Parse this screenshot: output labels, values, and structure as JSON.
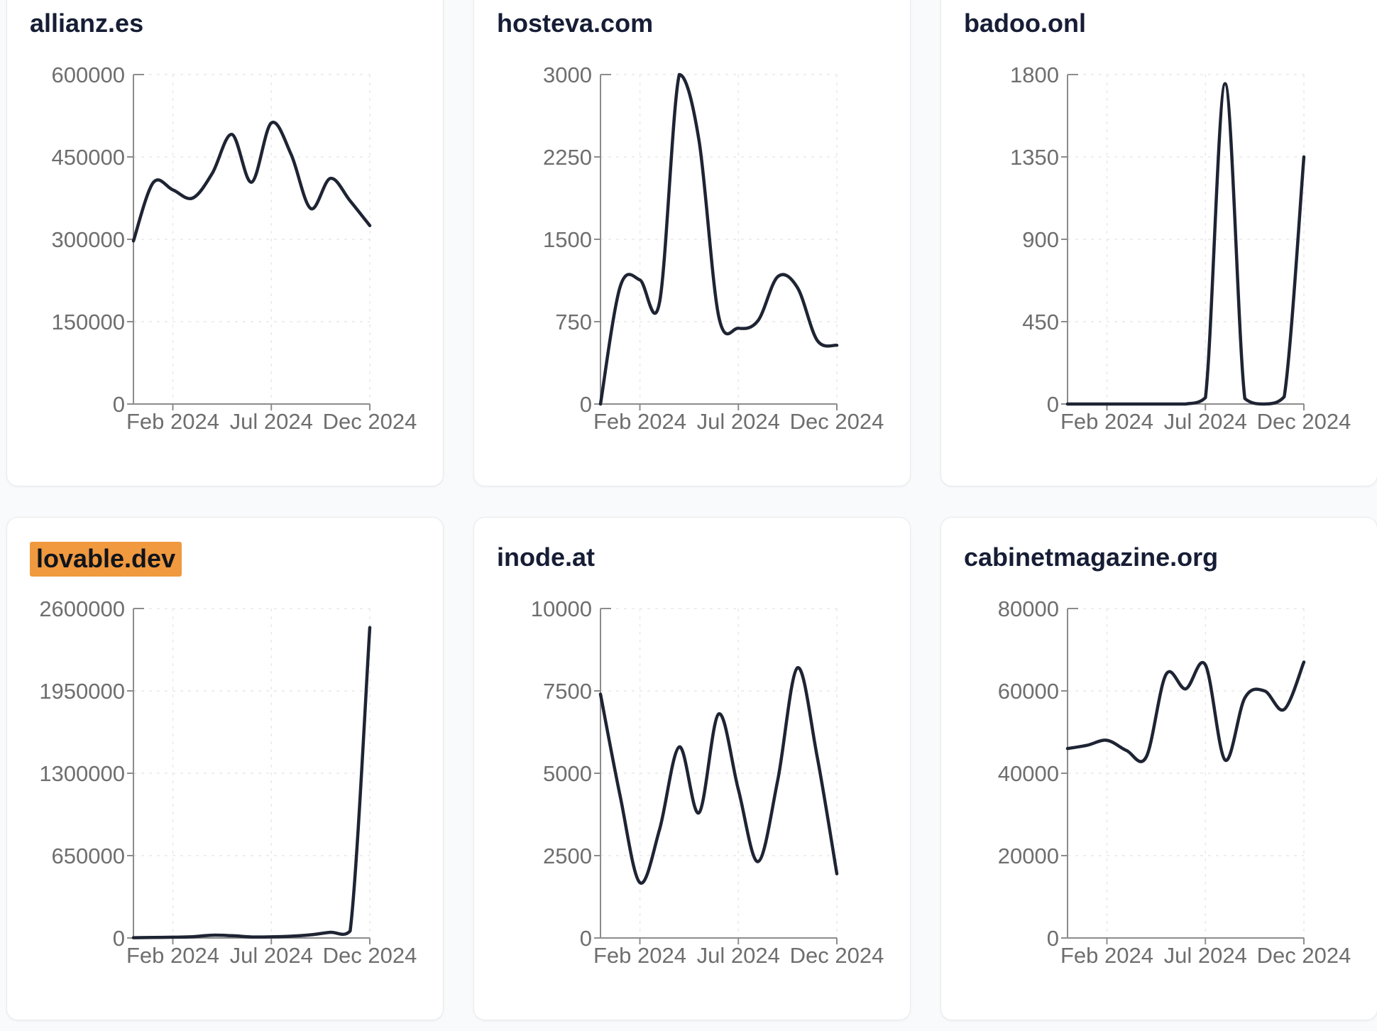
{
  "style": {
    "page_bg": "#f9fafb",
    "card_bg": "#ffffff",
    "card_border": "#e8eaee",
    "title_color": "#161d35",
    "highlight_bg": "#F0993F",
    "line_color": "#1e2433",
    "axis_color": "#8c8c8c",
    "grid_color": "#e9e9e9",
    "tick_label_color": "#6e6e6e"
  },
  "chart_data": [
    {
      "type": "line",
      "title": "allianz.es",
      "highlighted": false,
      "x": [
        "Dec 2023",
        "Jan 2024",
        "Feb 2024",
        "Mar 2024",
        "Apr 2024",
        "May 2024",
        "Jun 2024",
        "Jul 2024",
        "Aug 2024",
        "Sep 2024",
        "Oct 2024",
        "Nov 2024",
        "Dec 2024"
      ],
      "values": [
        297000,
        403000,
        390000,
        375000,
        420000,
        491000,
        404000,
        512000,
        455000,
        356000,
        411000,
        370000,
        325000
      ],
      "ylim": [
        0,
        600000
      ],
      "y_ticks": [
        0,
        150000,
        300000,
        450000,
        600000
      ],
      "x_ticks": [
        {
          "label": "Feb 2024",
          "t": 0.1667
        },
        {
          "label": "Jul 2024",
          "t": 0.5833
        },
        {
          "label": "Dec 2024",
          "t": 1.0
        }
      ],
      "grid": true,
      "legend": "none"
    },
    {
      "type": "line",
      "title": "hosteva.com",
      "highlighted": false,
      "x": [
        "Dec 2023",
        "Jan 2024",
        "Feb 2024",
        "Mar 2024",
        "Apr 2024",
        "May 2024",
        "Jun 2024",
        "Jul 2024",
        "Aug 2024",
        "Sep 2024",
        "Oct 2024",
        "Nov 2024",
        "Dec 2024"
      ],
      "values": [
        0,
        1070,
        1130,
        930,
        3000,
        2400,
        800,
        690,
        760,
        1160,
        1060,
        580,
        535
      ],
      "ylim": [
        0,
        3000
      ],
      "y_ticks": [
        0,
        750,
        1500,
        2250,
        3000
      ],
      "x_ticks": [
        {
          "label": "Feb 2024",
          "t": 0.1667
        },
        {
          "label": "Jul 2024",
          "t": 0.5833
        },
        {
          "label": "Dec 2024",
          "t": 1.0
        }
      ],
      "grid": true,
      "legend": "none"
    },
    {
      "type": "line",
      "title": "badoo.onl",
      "highlighted": false,
      "x": [
        "Dec 2023",
        "Jan 2024",
        "Feb 2024",
        "Mar 2024",
        "Apr 2024",
        "May 2024",
        "Jun 2024",
        "Jul 2024",
        "Aug 2024",
        "Sep 2024",
        "Oct 2024",
        "Nov 2024",
        "Dec 2024"
      ],
      "values": [
        0,
        0,
        0,
        0,
        0,
        0,
        0,
        35,
        1750,
        30,
        0,
        40,
        1350
      ],
      "ylim": [
        0,
        1800
      ],
      "y_ticks": [
        0,
        450,
        900,
        1350,
        1800
      ],
      "x_ticks": [
        {
          "label": "Feb 2024",
          "t": 0.1667
        },
        {
          "label": "Jul 2024",
          "t": 0.5833
        },
        {
          "label": "Dec 2024",
          "t": 1.0
        }
      ],
      "grid": true,
      "legend": "none"
    },
    {
      "type": "line",
      "title": "lovable.dev",
      "highlighted": true,
      "x": [
        "Dec 2023",
        "Jan 2024",
        "Feb 2024",
        "Mar 2024",
        "Apr 2024",
        "May 2024",
        "Jun 2024",
        "Jul 2024",
        "Aug 2024",
        "Sep 2024",
        "Oct 2024",
        "Nov 2024",
        "Dec 2024"
      ],
      "values": [
        2000,
        4000,
        6000,
        10000,
        22000,
        18000,
        8000,
        9000,
        14000,
        25000,
        45000,
        55000,
        2450000
      ],
      "ylim": [
        0,
        2600000
      ],
      "y_ticks": [
        0,
        650000,
        1300000,
        1950000,
        2600000
      ],
      "x_ticks": [
        {
          "label": "Feb 2024",
          "t": 0.1667
        },
        {
          "label": "Jul 2024",
          "t": 0.5833
        },
        {
          "label": "Dec 2024",
          "t": 1.0
        }
      ],
      "grid": true,
      "legend": "none"
    },
    {
      "type": "line",
      "title": "inode.at",
      "highlighted": false,
      "x": [
        "Dec 2023",
        "Jan 2024",
        "Feb 2024",
        "Mar 2024",
        "Apr 2024",
        "May 2024",
        "Jun 2024",
        "Jul 2024",
        "Aug 2024",
        "Sep 2024",
        "Oct 2024",
        "Nov 2024",
        "Dec 2024"
      ],
      "values": [
        7400,
        4300,
        1680,
        3300,
        5800,
        3800,
        6800,
        4500,
        2320,
        4800,
        8200,
        5500,
        1950
      ],
      "ylim": [
        0,
        10000
      ],
      "y_ticks": [
        0,
        2500,
        5000,
        7500,
        10000
      ],
      "x_ticks": [
        {
          "label": "Feb 2024",
          "t": 0.1667
        },
        {
          "label": "Jul 2024",
          "t": 0.5833
        },
        {
          "label": "Dec 2024",
          "t": 1.0
        }
      ],
      "grid": true,
      "legend": "none"
    },
    {
      "type": "line",
      "title": "cabinetmagazine.org",
      "highlighted": false,
      "x": [
        "Dec 2023",
        "Jan 2024",
        "Feb 2024",
        "Mar 2024",
        "Apr 2024",
        "May 2024",
        "Jun 2024",
        "Jul 2024",
        "Aug 2024",
        "Sep 2024",
        "Oct 2024",
        "Nov 2024",
        "Dec 2024"
      ],
      "values": [
        46000,
        46800,
        48000,
        45500,
        44000,
        64000,
        60500,
        66300,
        43200,
        58300,
        60000,
        55500,
        67000
      ],
      "ylim": [
        0,
        80000
      ],
      "y_ticks": [
        0,
        20000,
        40000,
        60000,
        80000
      ],
      "x_ticks": [
        {
          "label": "Feb 2024",
          "t": 0.1667
        },
        {
          "label": "Jul 2024",
          "t": 0.5833
        },
        {
          "label": "Dec 2024",
          "t": 1.0
        }
      ],
      "grid": true,
      "legend": "none"
    }
  ]
}
